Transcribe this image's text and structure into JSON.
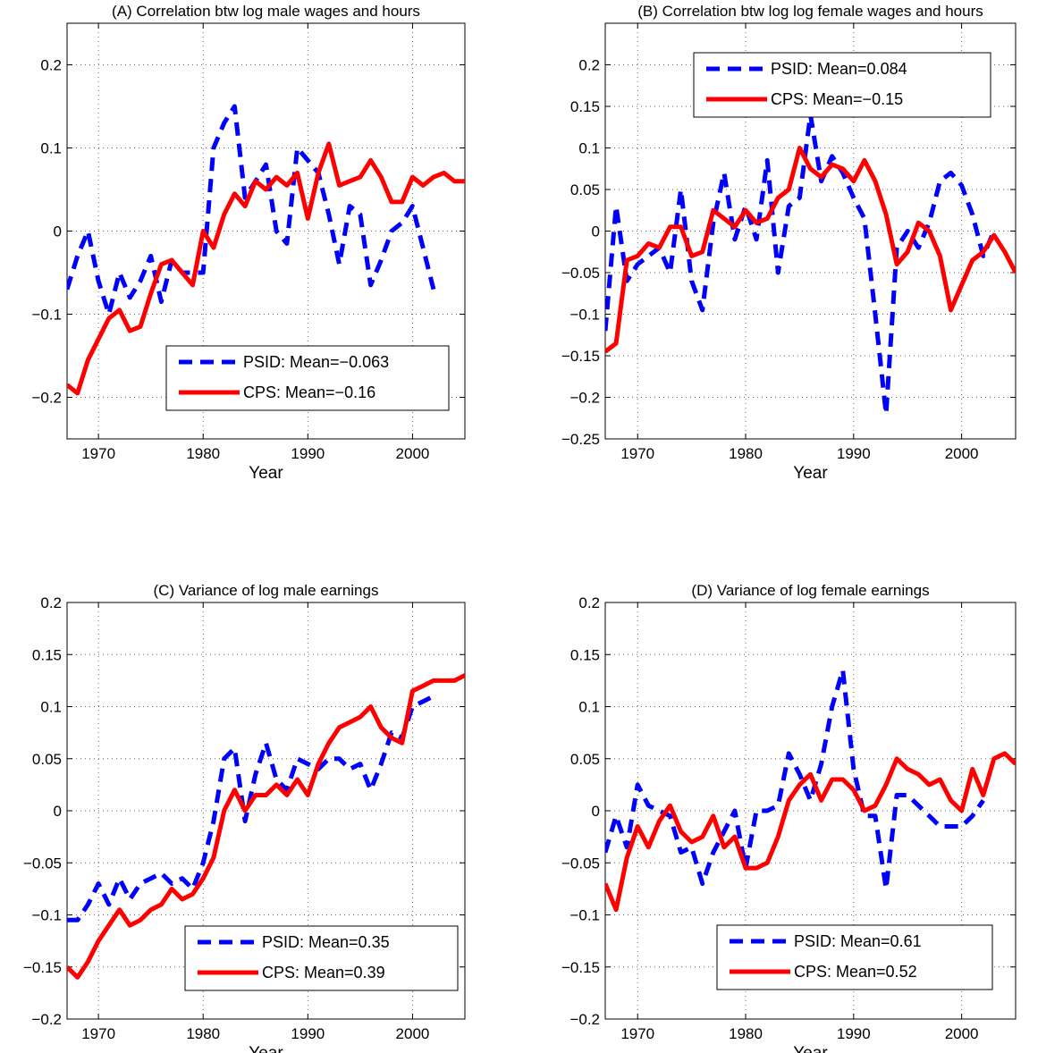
{
  "chart_data": [
    {
      "type": "line",
      "title": "(A) Correlation btw log male wages and hours",
      "xlabel": "Year",
      "ylabel": "",
      "xlim": [
        1967,
        2005
      ],
      "ylim": [
        -0.25,
        0.25
      ],
      "xticks": [
        1970,
        1980,
        1990,
        2000
      ],
      "xtick_labels": [
        "1970",
        "1980",
        "1990",
        "2000"
      ],
      "yticks": [
        -0.2,
        -0.1,
        0,
        0.1,
        0.2
      ],
      "ytick_labels": [
        "−0.2",
        "−0.1",
        "0",
        "0.1",
        "0.2"
      ],
      "grid": true,
      "legend_position": "lower-right",
      "series": [
        {
          "name": "PSID: Mean=−0.063",
          "color": "#0000ff",
          "style": "dashed",
          "x": [
            1967,
            1968,
            1969,
            1970,
            1971,
            1972,
            1973,
            1974,
            1975,
            1976,
            1977,
            1978,
            1979,
            1980,
            1981,
            1982,
            1983,
            1984,
            1985,
            1986,
            1987,
            1988,
            1989,
            1990,
            1991,
            1992,
            1993,
            1994,
            1995,
            1996,
            1997,
            1998,
            1999,
            2000,
            2001,
            2002
          ],
          "values": [
            -0.07,
            -0.03,
            0.0,
            -0.06,
            -0.1,
            -0.05,
            -0.08,
            -0.06,
            -0.03,
            -0.085,
            -0.035,
            -0.05,
            -0.05,
            -0.05,
            0.1,
            0.13,
            0.15,
            0.04,
            0.06,
            0.08,
            0.0,
            -0.015,
            0.1,
            0.085,
            0.07,
            0.02,
            -0.04,
            0.03,
            0.02,
            -0.065,
            -0.035,
            0.0,
            0.01,
            0.03,
            -0.02,
            -0.07
          ]
        },
        {
          "name": "CPS:  Mean=−0.16",
          "color": "#ff0000",
          "style": "solid",
          "x": [
            1967,
            1968,
            1969,
            1970,
            1971,
            1972,
            1973,
            1974,
            1975,
            1976,
            1977,
            1978,
            1979,
            1980,
            1981,
            1982,
            1983,
            1984,
            1985,
            1986,
            1987,
            1988,
            1989,
            1990,
            1991,
            1992,
            1993,
            1994,
            1995,
            1996,
            1997,
            1998,
            1999,
            2000,
            2001,
            2002,
            2003,
            2004,
            2005
          ],
          "values": [
            -0.185,
            -0.195,
            -0.155,
            -0.13,
            -0.105,
            -0.095,
            -0.12,
            -0.115,
            -0.075,
            -0.04,
            -0.035,
            -0.05,
            -0.065,
            0.0,
            -0.02,
            0.02,
            0.045,
            0.03,
            0.06,
            0.05,
            0.065,
            0.055,
            0.07,
            0.015,
            0.07,
            0.105,
            0.055,
            0.06,
            0.065,
            0.085,
            0.065,
            0.035,
            0.035,
            0.065,
            0.055,
            0.065,
            0.07,
            0.06,
            0.06
          ]
        }
      ]
    },
    {
      "type": "line",
      "title": "(B) Correlation btw log log female wages and hours",
      "xlabel": "Year",
      "ylabel": "",
      "xlim": [
        1967,
        2005
      ],
      "ylim": [
        -0.25,
        0.25
      ],
      "xticks": [
        1970,
        1980,
        1990,
        2000
      ],
      "xtick_labels": [
        "1970",
        "1980",
        "1990",
        "2000"
      ],
      "yticks": [
        -0.25,
        -0.2,
        -0.15,
        -0.1,
        -0.05,
        0,
        0.05,
        0.1,
        0.15,
        0.2
      ],
      "ytick_labels": [
        "−0.25",
        "−0.2",
        "−0.15",
        "−0.1",
        "−0.05",
        "0",
        "0.05",
        "0.1",
        "0.15",
        "0.2"
      ],
      "grid": true,
      "legend_position": "top-right",
      "series": [
        {
          "name": "PSID: Mean=0.084",
          "color": "#0000ff",
          "style": "dashed",
          "x": [
            1967,
            1968,
            1969,
            1970,
            1971,
            1972,
            1973,
            1974,
            1975,
            1976,
            1977,
            1978,
            1979,
            1980,
            1981,
            1982,
            1983,
            1984,
            1985,
            1986,
            1987,
            1988,
            1989,
            1990,
            1991,
            1992,
            1993,
            1994,
            1995,
            1996,
            1997,
            1998,
            1999,
            2000,
            2001,
            2002,
            2003
          ],
          "values": [
            -0.12,
            0.03,
            -0.06,
            -0.04,
            -0.03,
            -0.02,
            -0.05,
            0.05,
            -0.06,
            -0.095,
            0.01,
            0.07,
            -0.01,
            0.03,
            -0.01,
            0.085,
            -0.05,
            0.03,
            0.04,
            0.14,
            0.06,
            0.09,
            0.07,
            0.04,
            0.015,
            -0.1,
            -0.22,
            -0.02,
            0.0,
            -0.02,
            0.01,
            0.06,
            0.07,
            0.055,
            0.02,
            -0.03,
            0.0
          ]
        },
        {
          "name": "CPS:  Mean=−0.15",
          "color": "#ff0000",
          "style": "solid",
          "x": [
            1967,
            1968,
            1969,
            1970,
            1971,
            1972,
            1973,
            1974,
            1975,
            1976,
            1977,
            1978,
            1979,
            1980,
            1981,
            1982,
            1983,
            1984,
            1985,
            1986,
            1987,
            1988,
            1989,
            1990,
            1991,
            1992,
            1993,
            1994,
            1995,
            1996,
            1997,
            1998,
            1999,
            2000,
            2001,
            2002,
            2003,
            2004,
            2005
          ],
          "values": [
            -0.145,
            -0.135,
            -0.035,
            -0.03,
            -0.015,
            -0.02,
            0.005,
            0.005,
            -0.03,
            -0.025,
            0.025,
            0.015,
            0.005,
            0.025,
            0.01,
            0.015,
            0.04,
            0.05,
            0.1,
            0.075,
            0.065,
            0.08,
            0.075,
            0.06,
            0.085,
            0.06,
            0.02,
            -0.04,
            -0.025,
            0.01,
            0.0,
            -0.03,
            -0.095,
            -0.065,
            -0.035,
            -0.025,
            -0.005,
            -0.025,
            -0.05
          ]
        }
      ]
    },
    {
      "type": "line",
      "title": "(C) Variance of log male earnings",
      "xlabel": "Year",
      "ylabel": "",
      "xlim": [
        1967,
        2005
      ],
      "ylim": [
        -0.2,
        0.2
      ],
      "xticks": [
        1970,
        1980,
        1990,
        2000
      ],
      "xtick_labels": [
        "1970",
        "1980",
        "1990",
        "2000"
      ],
      "yticks": [
        -0.2,
        -0.15,
        -0.1,
        -0.05,
        0,
        0.05,
        0.1,
        0.15,
        0.2
      ],
      "ytick_labels": [
        "−0.2",
        "−0.15",
        "−0.1",
        "−0.05",
        "0",
        "0.05",
        "0.1",
        "0.15",
        "0.2"
      ],
      "grid": true,
      "legend_position": "lower-right",
      "series": [
        {
          "name": "PSID: Mean=0.35",
          "color": "#0000ff",
          "style": "dashed",
          "x": [
            1967,
            1968,
            1969,
            1970,
            1971,
            1972,
            1973,
            1974,
            1975,
            1976,
            1977,
            1978,
            1979,
            1980,
            1981,
            1982,
            1983,
            1984,
            1985,
            1986,
            1987,
            1988,
            1989,
            1990,
            1991,
            1992,
            1993,
            1994,
            1995,
            1996,
            1997,
            1998,
            1999,
            2000,
            2001,
            2002
          ],
          "values": [
            -0.105,
            -0.105,
            -0.09,
            -0.07,
            -0.09,
            -0.065,
            -0.085,
            -0.07,
            -0.065,
            -0.06,
            -0.07,
            -0.065,
            -0.075,
            -0.05,
            -0.01,
            0.05,
            0.06,
            -0.01,
            0.035,
            0.065,
            0.03,
            0.02,
            0.05,
            0.045,
            0.04,
            0.05,
            0.05,
            0.04,
            0.045,
            0.02,
            0.045,
            0.075,
            0.07,
            0.1,
            0.105,
            0.11
          ]
        },
        {
          "name": "CPS:  Mean=0.39",
          "color": "#ff0000",
          "style": "solid",
          "x": [
            1967,
            1968,
            1969,
            1970,
            1971,
            1972,
            1973,
            1974,
            1975,
            1976,
            1977,
            1978,
            1979,
            1980,
            1981,
            1982,
            1983,
            1984,
            1985,
            1986,
            1987,
            1988,
            1989,
            1990,
            1991,
            1992,
            1993,
            1994,
            1995,
            1996,
            1997,
            1998,
            1999,
            2000,
            2001,
            2002,
            2003,
            2004,
            2005
          ],
          "values": [
            -0.15,
            -0.16,
            -0.145,
            -0.125,
            -0.11,
            -0.095,
            -0.11,
            -0.105,
            -0.095,
            -0.09,
            -0.075,
            -0.085,
            -0.08,
            -0.065,
            -0.045,
            0.0,
            0.02,
            0.0,
            0.015,
            0.015,
            0.025,
            0.015,
            0.03,
            0.015,
            0.045,
            0.065,
            0.08,
            0.085,
            0.09,
            0.1,
            0.08,
            0.07,
            0.065,
            0.115,
            0.12,
            0.125,
            0.125,
            0.125,
            0.13
          ]
        }
      ]
    },
    {
      "type": "line",
      "title": "(D) Variance of log female earnings",
      "xlabel": "Year",
      "ylabel": "",
      "xlim": [
        1967,
        2005
      ],
      "ylim": [
        -0.2,
        0.2
      ],
      "xticks": [
        1970,
        1980,
        1990,
        2000
      ],
      "xtick_labels": [
        "1970",
        "1980",
        "1990",
        "2000"
      ],
      "yticks": [
        -0.2,
        -0.15,
        -0.1,
        -0.05,
        0,
        0.05,
        0.1,
        0.15,
        0.2
      ],
      "ytick_labels": [
        "−0.2",
        "−0.15",
        "−0.1",
        "−0.05",
        "0",
        "0.05",
        "0.1",
        "0.15",
        "0.2"
      ],
      "grid": true,
      "legend_position": "lower-right",
      "series": [
        {
          "name": "PSID: Mean=0.61",
          "color": "#0000ff",
          "style": "dashed",
          "x": [
            1967,
            1968,
            1969,
            1970,
            1971,
            1972,
            1973,
            1974,
            1975,
            1976,
            1977,
            1978,
            1979,
            1980,
            1981,
            1982,
            1983,
            1984,
            1985,
            1986,
            1987,
            1988,
            1989,
            1990,
            1991,
            1992,
            1993,
            1994,
            1995,
            1996,
            1997,
            1998,
            1999,
            2000,
            2001,
            2002
          ],
          "values": [
            -0.04,
            -0.005,
            -0.035,
            0.025,
            0.005,
            0.0,
            -0.005,
            -0.04,
            -0.035,
            -0.07,
            -0.04,
            -0.02,
            0.0,
            -0.055,
            0.0,
            0.0,
            0.005,
            0.055,
            0.035,
            0.01,
            0.045,
            0.1,
            0.135,
            0.04,
            -0.005,
            -0.005,
            -0.075,
            0.015,
            0.015,
            0.005,
            -0.005,
            -0.015,
            -0.015,
            -0.015,
            -0.005,
            0.01
          ]
        },
        {
          "name": "CPS:  Mean=0.52",
          "color": "#ff0000",
          "style": "solid",
          "x": [
            1967,
            1968,
            1969,
            1970,
            1971,
            1972,
            1973,
            1974,
            1975,
            1976,
            1977,
            1978,
            1979,
            1980,
            1981,
            1982,
            1983,
            1984,
            1985,
            1986,
            1987,
            1988,
            1989,
            1990,
            1991,
            1992,
            1993,
            1994,
            1995,
            1996,
            1997,
            1998,
            1999,
            2000,
            2001,
            2002,
            2003,
            2004,
            2005
          ],
          "values": [
            -0.07,
            -0.095,
            -0.045,
            -0.015,
            -0.035,
            -0.01,
            0.005,
            -0.02,
            -0.03,
            -0.025,
            -0.005,
            -0.035,
            -0.025,
            -0.055,
            -0.055,
            -0.05,
            -0.025,
            0.01,
            0.025,
            0.035,
            0.01,
            0.03,
            0.03,
            0.02,
            0.0,
            0.005,
            0.025,
            0.05,
            0.04,
            0.035,
            0.025,
            0.03,
            0.01,
            0.0,
            0.04,
            0.015,
            0.05,
            0.055,
            0.045
          ]
        }
      ]
    }
  ]
}
